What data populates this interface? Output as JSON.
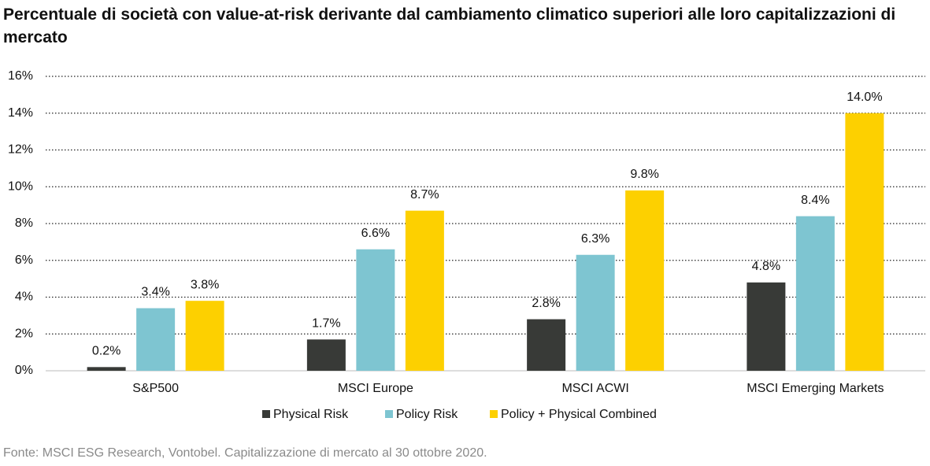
{
  "chart_data": {
    "type": "bar",
    "title": "Percentuale di società con value-at-risk derivante dal cambiamento climatico superiori alle loro capitalizzazioni di mercato",
    "categories": [
      "S&P500",
      "MSCI Europe",
      "MSCI ACWI",
      "MSCI Emerging Markets"
    ],
    "series": [
      {
        "name": "Physical Risk",
        "color": "#383a37",
        "values": [
          0.2,
          1.7,
          2.8,
          4.8
        ],
        "value_labels": [
          "0.2%",
          "1.7%",
          "2.8%",
          "4.8%"
        ]
      },
      {
        "name": "Policy Risk",
        "color": "#7ec5d1",
        "values": [
          3.4,
          6.6,
          6.3,
          8.4
        ],
        "value_labels": [
          "3.4%",
          "6.6%",
          "6.3%",
          "8.4%"
        ]
      },
      {
        "name": "Policy + Physical Combined",
        "color": "#fdd000",
        "values": [
          3.8,
          8.7,
          9.8,
          14.0
        ],
        "value_labels": [
          "3.8%",
          "8.7%",
          "9.8%",
          "14.0%"
        ]
      }
    ],
    "ylim": [
      0,
      16
    ],
    "yticks": [
      {
        "value": 0,
        "label": "0%"
      },
      {
        "value": 2,
        "label": "2%"
      },
      {
        "value": 4,
        "label": "4%"
      },
      {
        "value": 6,
        "label": "6%"
      },
      {
        "value": 8,
        "label": "8%"
      },
      {
        "value": 10,
        "label": "10%"
      },
      {
        "value": 12,
        "label": "12%"
      },
      {
        "value": 14,
        "label": "14%"
      },
      {
        "value": 16,
        "label": "16%"
      }
    ],
    "grid": true,
    "legend": "bottom",
    "source": "Fonte: MSCI ESG Research, Vontobel. Capitalizzazione di mercato al 30 ottobre 2020."
  }
}
